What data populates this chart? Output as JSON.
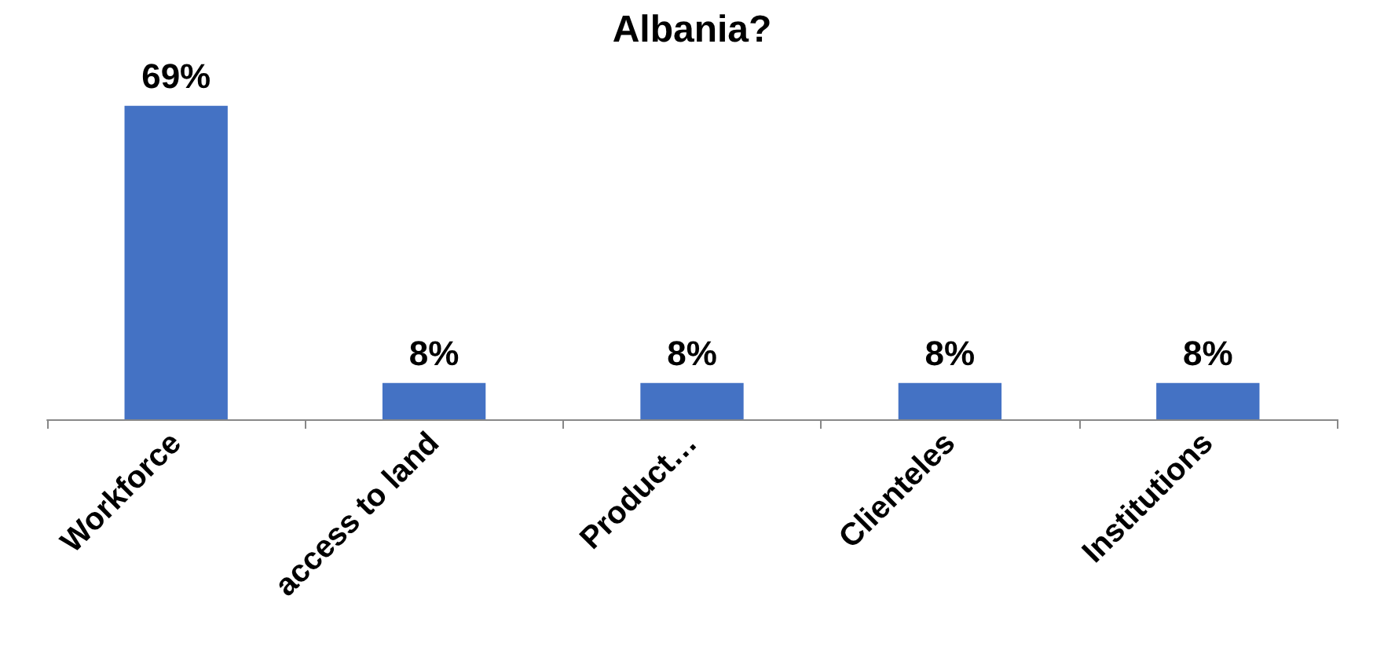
{
  "chart_data": {
    "type": "bar",
    "title": "Albania?",
    "categories": [
      "Workforce",
      "access to land",
      "Product…",
      "Clienteles",
      "Institutions"
    ],
    "values": [
      69,
      8,
      8,
      8,
      8
    ],
    "value_labels": [
      "69%",
      "8%",
      "8%",
      "8%",
      "8%"
    ],
    "color": "#4472c4"
  }
}
